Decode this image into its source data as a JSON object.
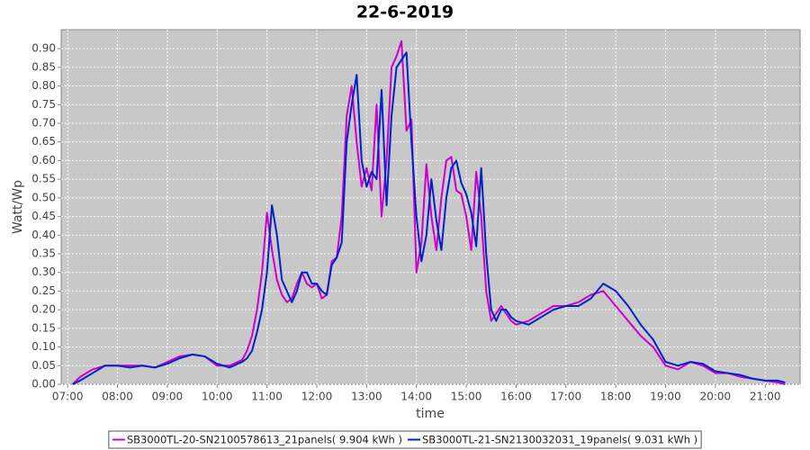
{
  "chart_data": {
    "type": "line",
    "title": "22-6-2019",
    "x_label": "time",
    "y_label": "Watt/Wp",
    "x": [
      7.1,
      7.25,
      7.5,
      7.75,
      8.0,
      8.25,
      8.5,
      8.75,
      9.0,
      9.25,
      9.5,
      9.75,
      10.0,
      10.25,
      10.5,
      10.6,
      10.7,
      10.8,
      10.9,
      11.0,
      11.1,
      11.2,
      11.3,
      11.4,
      11.5,
      11.6,
      11.7,
      11.8,
      11.9,
      12.0,
      12.1,
      12.2,
      12.3,
      12.4,
      12.5,
      12.6,
      12.7,
      12.8,
      12.9,
      13.0,
      13.1,
      13.2,
      13.3,
      13.4,
      13.5,
      13.6,
      13.7,
      13.8,
      13.9,
      14.0,
      14.1,
      14.2,
      14.3,
      14.4,
      14.5,
      14.6,
      14.7,
      14.8,
      14.9,
      15.0,
      15.1,
      15.2,
      15.3,
      15.4,
      15.5,
      15.6,
      15.7,
      15.8,
      15.9,
      16.0,
      16.25,
      16.5,
      16.75,
      17.0,
      17.25,
      17.5,
      17.75,
      18.0,
      18.25,
      18.5,
      18.75,
      19.0,
      19.25,
      19.5,
      19.75,
      20.0,
      20.25,
      20.5,
      20.75,
      21.0,
      21.25,
      21.4
    ],
    "series": [
      {
        "name": "SB3000TL-20-SN2100578613_21panels( 9.904 kWh )",
        "color": "#cc00cc",
        "values": [
          0,
          0.02,
          0.04,
          0.05,
          0.05,
          0.05,
          0.05,
          0.045,
          0.06,
          0.075,
          0.08,
          0.075,
          0.05,
          0.05,
          0.065,
          0.09,
          0.13,
          0.2,
          0.3,
          0.46,
          0.36,
          0.28,
          0.24,
          0.22,
          0.23,
          0.27,
          0.3,
          0.27,
          0.26,
          0.27,
          0.23,
          0.24,
          0.33,
          0.34,
          0.45,
          0.72,
          0.8,
          0.65,
          0.53,
          0.58,
          0.52,
          0.75,
          0.45,
          0.6,
          0.85,
          0.88,
          0.92,
          0.68,
          0.71,
          0.3,
          0.38,
          0.59,
          0.45,
          0.36,
          0.5,
          0.6,
          0.61,
          0.52,
          0.51,
          0.45,
          0.36,
          0.57,
          0.45,
          0.25,
          0.17,
          0.19,
          0.21,
          0.19,
          0.17,
          0.16,
          0.17,
          0.19,
          0.21,
          0.21,
          0.22,
          0.24,
          0.25,
          0.21,
          0.17,
          0.13,
          0.1,
          0.05,
          0.04,
          0.06,
          0.05,
          0.03,
          0.03,
          0.02,
          0.015,
          0.01,
          0.005,
          0.0
        ]
      },
      {
        "name": "SB3000TL-21-SN2130032031_19panels( 9.031 kWh )",
        "color": "#0022cc",
        "values": [
          0,
          0.01,
          0.03,
          0.05,
          0.05,
          0.045,
          0.05,
          0.045,
          0.055,
          0.07,
          0.08,
          0.075,
          0.055,
          0.045,
          0.06,
          0.07,
          0.09,
          0.14,
          0.2,
          0.3,
          0.48,
          0.4,
          0.28,
          0.25,
          0.22,
          0.25,
          0.3,
          0.3,
          0.27,
          0.27,
          0.25,
          0.24,
          0.32,
          0.34,
          0.38,
          0.65,
          0.75,
          0.83,
          0.6,
          0.53,
          0.57,
          0.55,
          0.79,
          0.48,
          0.72,
          0.85,
          0.87,
          0.89,
          0.65,
          0.45,
          0.33,
          0.4,
          0.55,
          0.44,
          0.36,
          0.5,
          0.58,
          0.6,
          0.54,
          0.51,
          0.46,
          0.37,
          0.58,
          0.35,
          0.2,
          0.17,
          0.2,
          0.2,
          0.18,
          0.17,
          0.16,
          0.18,
          0.2,
          0.21,
          0.21,
          0.23,
          0.27,
          0.25,
          0.21,
          0.16,
          0.12,
          0.06,
          0.05,
          0.06,
          0.055,
          0.035,
          0.03,
          0.025,
          0.015,
          0.01,
          0.01,
          0.005
        ]
      }
    ],
    "xlim": [
      6.87,
      21.7
    ],
    "xticks": [
      {
        "value": 7,
        "label": "07:00"
      },
      {
        "value": 8,
        "label": "08:00"
      },
      {
        "value": 9,
        "label": "09:00"
      },
      {
        "value": 10,
        "label": "10:00"
      },
      {
        "value": 11,
        "label": "11:00"
      },
      {
        "value": 12,
        "label": "12:00"
      },
      {
        "value": 13,
        "label": "13:00"
      },
      {
        "value": 14,
        "label": "14:00"
      },
      {
        "value": 15,
        "label": "15:00"
      },
      {
        "value": 16,
        "label": "16:00"
      },
      {
        "value": 17,
        "label": "17:00"
      },
      {
        "value": 18,
        "label": "18:00"
      },
      {
        "value": 19,
        "label": "19:00"
      },
      {
        "value": 20,
        "label": "20:00"
      },
      {
        "value": 21,
        "label": "21:00"
      }
    ],
    "ylim": [
      0,
      0.951
    ],
    "yticks": [
      {
        "value": 0,
        "label": "0.00"
      },
      {
        "value": 0.05,
        "label": "0.05"
      },
      {
        "value": 0.1,
        "label": "0.10"
      },
      {
        "value": 0.15,
        "label": "0.15"
      },
      {
        "value": 0.2,
        "label": "0.20"
      },
      {
        "value": 0.25,
        "label": "0.25"
      },
      {
        "value": 0.3,
        "label": "0.30"
      },
      {
        "value": 0.35,
        "label": "0.35"
      },
      {
        "value": 0.4,
        "label": "0.40"
      },
      {
        "value": 0.45,
        "label": "0.45"
      },
      {
        "value": 0.5,
        "label": "0.50"
      },
      {
        "value": 0.55,
        "label": "0.55"
      },
      {
        "value": 0.6,
        "label": "0.60"
      },
      {
        "value": 0.65,
        "label": "0.65"
      },
      {
        "value": 0.7,
        "label": "0.70"
      },
      {
        "value": 0.75,
        "label": "0.75"
      },
      {
        "value": 0.8,
        "label": "0.80"
      },
      {
        "value": 0.85,
        "label": "0.85"
      },
      {
        "value": 0.9,
        "label": "0.90"
      }
    ],
    "grid": true,
    "legend": "bottom"
  }
}
